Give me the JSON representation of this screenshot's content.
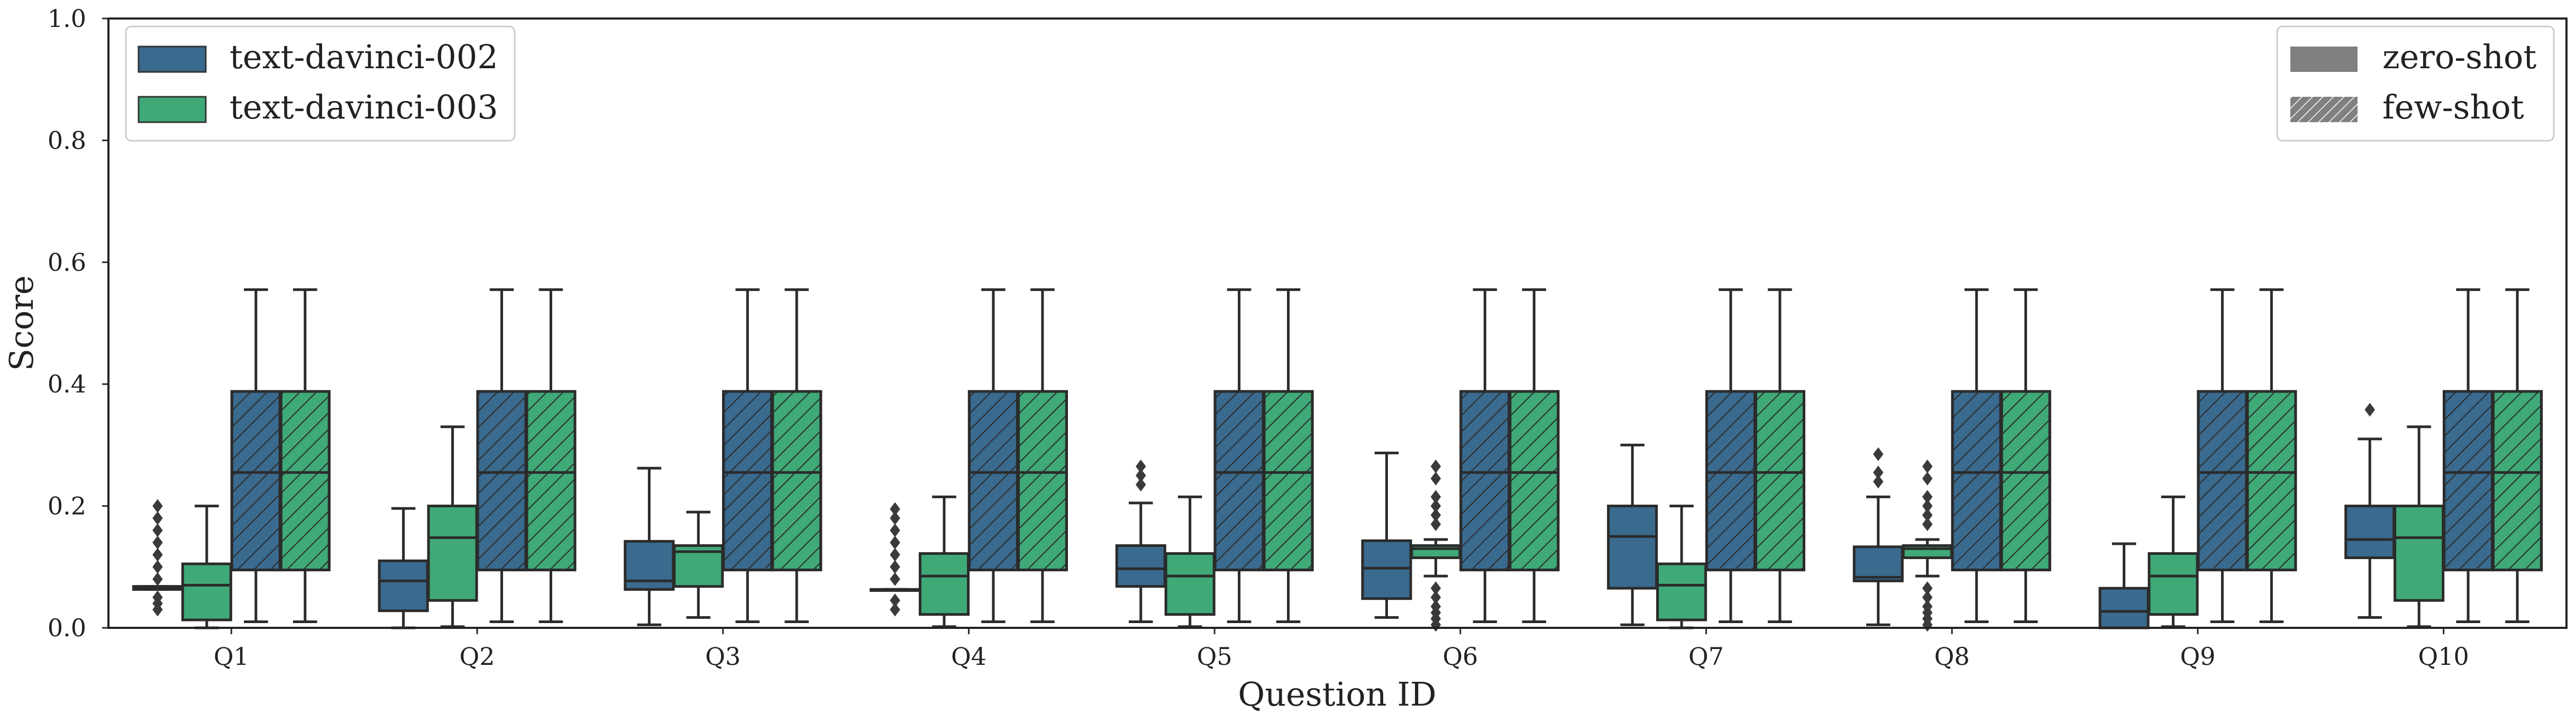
{
  "chart_data": {
    "type": "boxplot",
    "title": "",
    "xlabel": "Question ID",
    "ylabel": "Score",
    "ylim": [
      0,
      1.0
    ],
    "yticks": [
      "0.0",
      "0.2",
      "0.4",
      "0.6",
      "0.8",
      "1.0"
    ],
    "grid": false,
    "categories": [
      "Q1",
      "Q2",
      "Q3",
      "Q4",
      "Q5",
      "Q6",
      "Q7",
      "Q8",
      "Q9",
      "Q10"
    ],
    "model_legend": {
      "placement": "top-left",
      "entries": [
        {
          "label": "text-davinci-002",
          "color": "#3a6a8e"
        },
        {
          "label": "text-davinci-003",
          "color": "#3fa977"
        }
      ]
    },
    "setting_legend": {
      "placement": "top-right",
      "entries": [
        {
          "label": "zero-shot",
          "pattern": "solid",
          "color": "#808080"
        },
        {
          "label": "few-shot",
          "pattern": "hatched",
          "color": "#808080"
        }
      ]
    },
    "series": [
      {
        "name": "text-davinci-002 zero-shot",
        "model": "text-davinci-002",
        "setting": "zero-shot",
        "boxes": [
          {
            "q1": 0.063,
            "median": 0.065,
            "q3": 0.068,
            "wlo": 0.063,
            "whi": 0.068,
            "outliers": [
              0.03,
              0.04,
              0.05,
              0.08,
              0.1,
              0.12,
              0.14,
              0.16,
              0.18,
              0.2
            ]
          },
          {
            "q1": 0.028,
            "median": 0.077,
            "q3": 0.11,
            "wlo": 0.0,
            "whi": 0.196,
            "outliers": []
          },
          {
            "q1": 0.063,
            "median": 0.077,
            "q3": 0.142,
            "wlo": 0.005,
            "whi": 0.262,
            "outliers": []
          },
          {
            "q1": 0.063,
            "median": 0.063,
            "q3": 0.063,
            "wlo": 0.063,
            "whi": 0.063,
            "outliers": [
              0.03,
              0.045,
              0.08,
              0.1,
              0.12,
              0.14,
              0.16,
              0.18,
              0.195
            ]
          },
          {
            "q1": 0.068,
            "median": 0.097,
            "q3": 0.135,
            "wlo": 0.01,
            "whi": 0.205,
            "outliers": [
              0.235,
              0.25,
              0.265
            ]
          },
          {
            "q1": 0.048,
            "median": 0.098,
            "q3": 0.143,
            "wlo": 0.017,
            "whi": 0.287,
            "outliers": []
          },
          {
            "q1": 0.065,
            "median": 0.15,
            "q3": 0.2,
            "wlo": 0.005,
            "whi": 0.3,
            "outliers": []
          },
          {
            "q1": 0.077,
            "median": 0.083,
            "q3": 0.133,
            "wlo": 0.005,
            "whi": 0.215,
            "outliers": [
              0.24,
              0.255,
              0.285
            ]
          },
          {
            "q1": 0.0,
            "median": 0.027,
            "q3": 0.065,
            "wlo": 0.0,
            "whi": 0.138,
            "outliers": []
          },
          {
            "q1": 0.115,
            "median": 0.145,
            "q3": 0.2,
            "wlo": 0.017,
            "whi": 0.31,
            "outliers": [
              0.358
            ]
          }
        ]
      },
      {
        "name": "text-davinci-003 zero-shot",
        "model": "text-davinci-003",
        "setting": "zero-shot",
        "boxes": [
          {
            "q1": 0.013,
            "median": 0.07,
            "q3": 0.105,
            "wlo": 0.0,
            "whi": 0.2,
            "outliers": []
          },
          {
            "q1": 0.045,
            "median": 0.148,
            "q3": 0.2,
            "wlo": 0.002,
            "whi": 0.33,
            "outliers": []
          },
          {
            "q1": 0.068,
            "median": 0.125,
            "q3": 0.135,
            "wlo": 0.017,
            "whi": 0.19,
            "outliers": []
          },
          {
            "q1": 0.022,
            "median": 0.085,
            "q3": 0.122,
            "wlo": 0.002,
            "whi": 0.215,
            "outliers": []
          },
          {
            "q1": 0.022,
            "median": 0.085,
            "q3": 0.122,
            "wlo": 0.002,
            "whi": 0.215,
            "outliers": []
          },
          {
            "q1": 0.115,
            "median": 0.13,
            "q3": 0.135,
            "wlo": 0.085,
            "whi": 0.145,
            "outliers": [
              0.005,
              0.015,
              0.025,
              0.035,
              0.05,
              0.065,
              0.17,
              0.185,
              0.2,
              0.215,
              0.245,
              0.265
            ]
          },
          {
            "q1": 0.013,
            "median": 0.07,
            "q3": 0.105,
            "wlo": 0.0,
            "whi": 0.2,
            "outliers": []
          },
          {
            "q1": 0.115,
            "median": 0.13,
            "q3": 0.135,
            "wlo": 0.085,
            "whi": 0.145,
            "outliers": [
              0.005,
              0.015,
              0.025,
              0.035,
              0.05,
              0.065,
              0.17,
              0.185,
              0.2,
              0.215,
              0.245,
              0.265
            ]
          },
          {
            "q1": 0.022,
            "median": 0.085,
            "q3": 0.122,
            "wlo": 0.002,
            "whi": 0.215,
            "outliers": []
          },
          {
            "q1": 0.045,
            "median": 0.148,
            "q3": 0.2,
            "wlo": 0.002,
            "whi": 0.33,
            "outliers": []
          }
        ]
      },
      {
        "name": "text-davinci-002 few-shot",
        "model": "text-davinci-002",
        "setting": "few-shot",
        "boxes": [
          {
            "q1": 0.095,
            "median": 0.255,
            "q3": 0.388,
            "wlo": 0.01,
            "whi": 0.555,
            "outliers": []
          },
          {
            "q1": 0.095,
            "median": 0.255,
            "q3": 0.388,
            "wlo": 0.01,
            "whi": 0.555,
            "outliers": []
          },
          {
            "q1": 0.095,
            "median": 0.255,
            "q3": 0.388,
            "wlo": 0.01,
            "whi": 0.555,
            "outliers": []
          },
          {
            "q1": 0.095,
            "median": 0.255,
            "q3": 0.388,
            "wlo": 0.01,
            "whi": 0.555,
            "outliers": []
          },
          {
            "q1": 0.095,
            "median": 0.255,
            "q3": 0.388,
            "wlo": 0.01,
            "whi": 0.555,
            "outliers": []
          },
          {
            "q1": 0.095,
            "median": 0.255,
            "q3": 0.388,
            "wlo": 0.01,
            "whi": 0.555,
            "outliers": []
          },
          {
            "q1": 0.095,
            "median": 0.255,
            "q3": 0.388,
            "wlo": 0.01,
            "whi": 0.555,
            "outliers": []
          },
          {
            "q1": 0.095,
            "median": 0.255,
            "q3": 0.388,
            "wlo": 0.01,
            "whi": 0.555,
            "outliers": []
          },
          {
            "q1": 0.095,
            "median": 0.255,
            "q3": 0.388,
            "wlo": 0.01,
            "whi": 0.555,
            "outliers": []
          },
          {
            "q1": 0.095,
            "median": 0.255,
            "q3": 0.388,
            "wlo": 0.01,
            "whi": 0.555,
            "outliers": []
          }
        ]
      },
      {
        "name": "text-davinci-003 few-shot",
        "model": "text-davinci-003",
        "setting": "few-shot",
        "boxes": [
          {
            "q1": 0.095,
            "median": 0.255,
            "q3": 0.388,
            "wlo": 0.01,
            "whi": 0.555,
            "outliers": []
          },
          {
            "q1": 0.095,
            "median": 0.255,
            "q3": 0.388,
            "wlo": 0.01,
            "whi": 0.555,
            "outliers": []
          },
          {
            "q1": 0.095,
            "median": 0.255,
            "q3": 0.388,
            "wlo": 0.01,
            "whi": 0.555,
            "outliers": []
          },
          {
            "q1": 0.095,
            "median": 0.255,
            "q3": 0.388,
            "wlo": 0.01,
            "whi": 0.555,
            "outliers": []
          },
          {
            "q1": 0.095,
            "median": 0.255,
            "q3": 0.388,
            "wlo": 0.01,
            "whi": 0.555,
            "outliers": []
          },
          {
            "q1": 0.095,
            "median": 0.255,
            "q3": 0.388,
            "wlo": 0.01,
            "whi": 0.555,
            "outliers": []
          },
          {
            "q1": 0.095,
            "median": 0.255,
            "q3": 0.388,
            "wlo": 0.01,
            "whi": 0.555,
            "outliers": []
          },
          {
            "q1": 0.095,
            "median": 0.255,
            "q3": 0.388,
            "wlo": 0.01,
            "whi": 0.555,
            "outliers": []
          },
          {
            "q1": 0.095,
            "median": 0.255,
            "q3": 0.388,
            "wlo": 0.01,
            "whi": 0.555,
            "outliers": []
          },
          {
            "q1": 0.095,
            "median": 0.255,
            "q3": 0.388,
            "wlo": 0.01,
            "whi": 0.555,
            "outliers": []
          }
        ]
      }
    ]
  }
}
